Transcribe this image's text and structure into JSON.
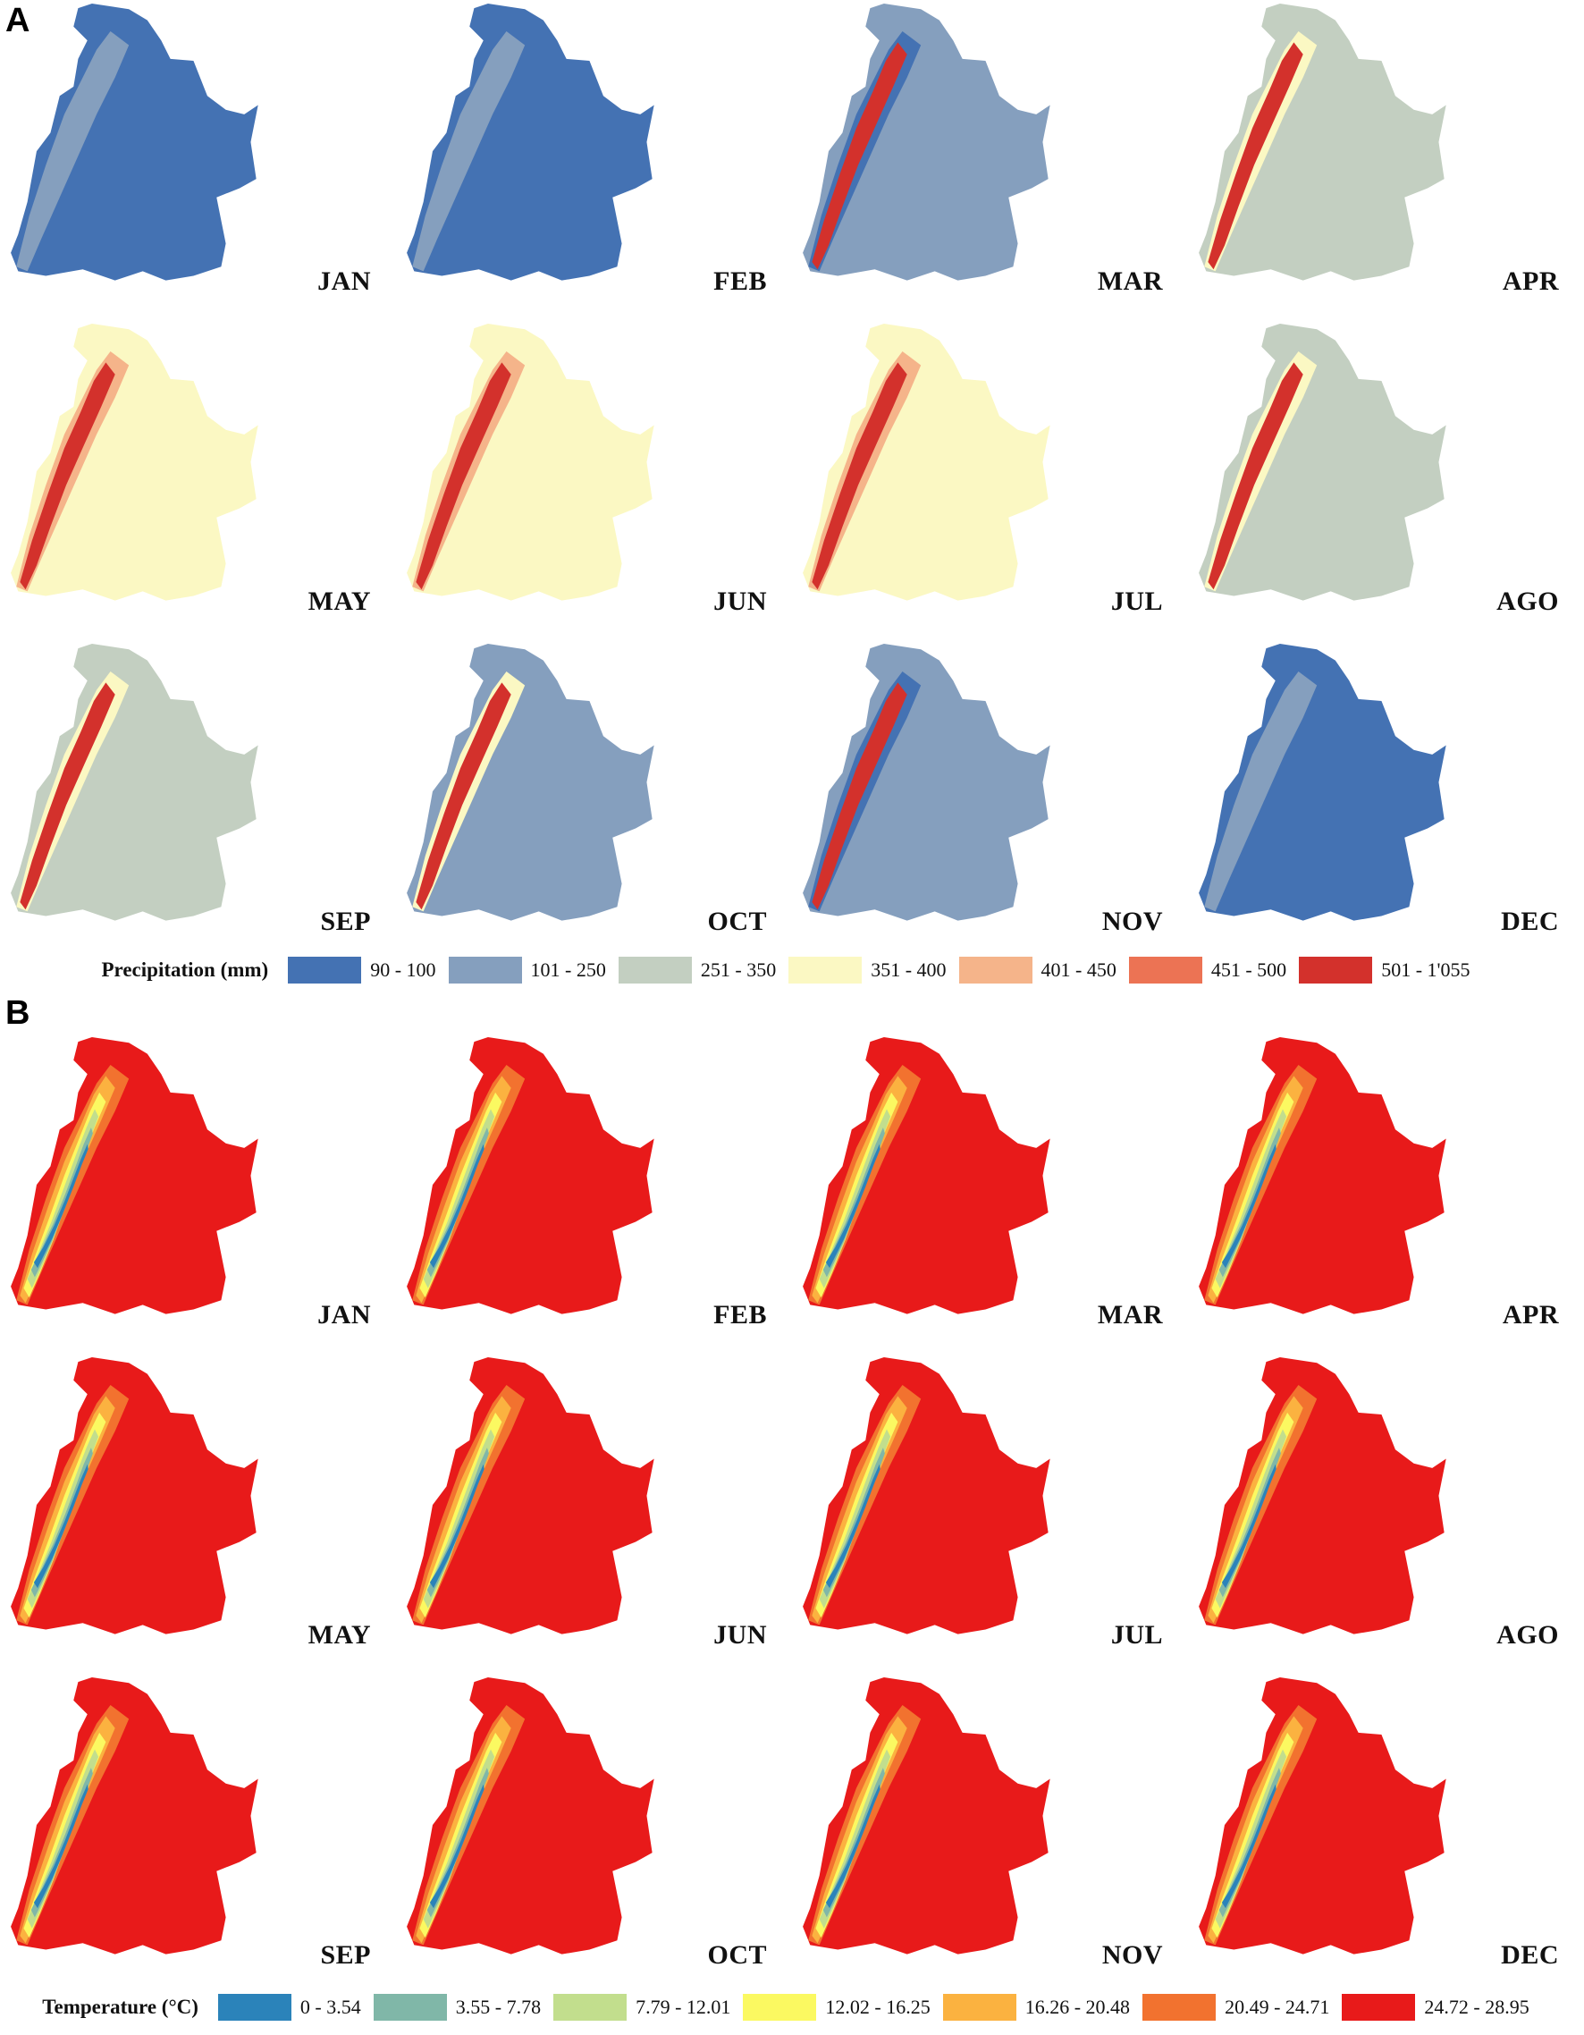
{
  "panels": [
    {
      "letter": "A",
      "legend_title": "Precipitation (mm)",
      "legend": [
        {
          "label": "90 - 100",
          "color": "#4472b3"
        },
        {
          "label": "101 - 250",
          "color": "#859fbe"
        },
        {
          "label": "251 - 350",
          "color": "#c3cfc1"
        },
        {
          "label": "351 - 400",
          "color": "#fbf8c3"
        },
        {
          "label": "401 - 450",
          "color": "#f5b48a"
        },
        {
          "label": "451 - 500",
          "color": "#ec7354"
        },
        {
          "label": "501 - 1'055",
          "color": "#d3312c"
        }
      ],
      "maps": [
        {
          "month": "JAN",
          "base": 0,
          "ridge": [
            1
          ]
        },
        {
          "month": "FEB",
          "base": 0,
          "ridge": [
            1
          ]
        },
        {
          "month": "MAR",
          "base": 1,
          "ridge": [
            0,
            6
          ]
        },
        {
          "month": "APR",
          "base": 2,
          "ridge": [
            3,
            6
          ]
        },
        {
          "month": "MAY",
          "base": 3,
          "ridge": [
            4,
            6
          ]
        },
        {
          "month": "JUN",
          "base": 3,
          "ridge": [
            4,
            6
          ]
        },
        {
          "month": "JUL",
          "base": 3,
          "ridge": [
            4,
            6
          ]
        },
        {
          "month": "AGO",
          "base": 2,
          "ridge": [
            3,
            6
          ]
        },
        {
          "month": "SEP",
          "base": 2,
          "ridge": [
            3,
            6
          ]
        },
        {
          "month": "OCT",
          "base": 1,
          "ridge": [
            3,
            6
          ]
        },
        {
          "month": "NOV",
          "base": 1,
          "ridge": [
            0,
            6
          ]
        },
        {
          "month": "DEC",
          "base": 0,
          "ridge": [
            1
          ]
        }
      ]
    },
    {
      "letter": "B",
      "legend_title": "Temperature (°C)",
      "legend": [
        {
          "label": "0 - 3.54",
          "color": "#2b83ba"
        },
        {
          "label": "3.55 - 7.78",
          "color": "#80b7a8"
        },
        {
          "label": "7.79 - 12.01",
          "color": "#c2de8d"
        },
        {
          "label": "12.02 - 16.25",
          "color": "#fbf961"
        },
        {
          "label": "16.26 - 20.48",
          "color": "#fbb240"
        },
        {
          "label": "20.49 - 24.71",
          "color": "#f2722f"
        },
        {
          "label": "24.72 - 28.95",
          "color": "#e81a1a"
        }
      ],
      "maps": [
        {
          "month": "JAN",
          "base": 6,
          "ridge": [
            5,
            4,
            3,
            2,
            1,
            0
          ]
        },
        {
          "month": "FEB",
          "base": 6,
          "ridge": [
            5,
            4,
            3,
            2,
            1,
            0
          ]
        },
        {
          "month": "MAR",
          "base": 6,
          "ridge": [
            5,
            4,
            3,
            2,
            1,
            0
          ]
        },
        {
          "month": "APR",
          "base": 6,
          "ridge": [
            5,
            4,
            3,
            2,
            1,
            0
          ]
        },
        {
          "month": "MAY",
          "base": 6,
          "ridge": [
            5,
            4,
            3,
            2,
            1,
            0
          ]
        },
        {
          "month": "JUN",
          "base": 6,
          "ridge": [
            5,
            4,
            3,
            2,
            1,
            0
          ]
        },
        {
          "month": "JUL",
          "base": 6,
          "ridge": [
            5,
            4,
            3,
            2,
            1,
            0
          ]
        },
        {
          "month": "AGO",
          "base": 6,
          "ridge": [
            5,
            4,
            3,
            2,
            1,
            0
          ]
        },
        {
          "month": "SEP",
          "base": 6,
          "ridge": [
            5,
            4,
            3,
            2,
            1,
            0
          ]
        },
        {
          "month": "OCT",
          "base": 6,
          "ridge": [
            5,
            4,
            3,
            2,
            1,
            0
          ]
        },
        {
          "month": "NOV",
          "base": 6,
          "ridge": [
            5,
            4,
            3,
            2,
            1,
            0
          ]
        },
        {
          "month": "DEC",
          "base": 6,
          "ridge": [
            5,
            4,
            3,
            2,
            1,
            0
          ]
        }
      ]
    }
  ]
}
